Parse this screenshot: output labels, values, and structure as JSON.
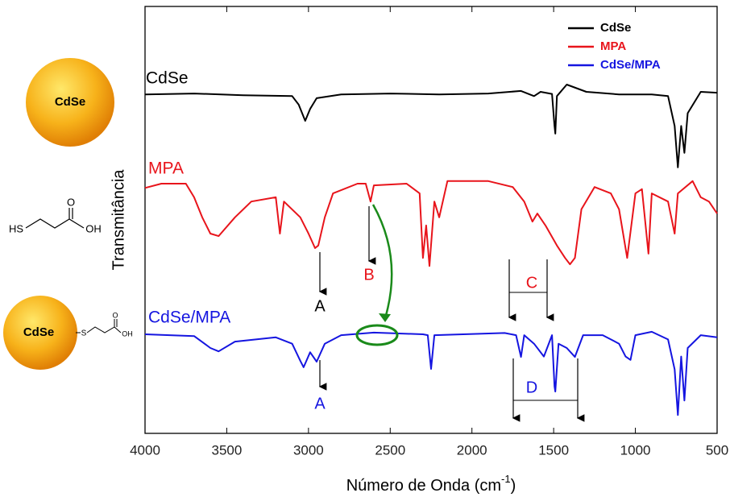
{
  "chart_data": {
    "type": "line",
    "xlabel": {
      "text": "Número de Onda (cm",
      "superscript": "-1",
      "suffix": ")"
    },
    "ylabel": "Transmitância",
    "xlim": [
      4000,
      500
    ],
    "xticks": [
      4000,
      3500,
      3000,
      2500,
      2000,
      1500,
      1000,
      500
    ],
    "ylim": [
      0,
      100
    ],
    "legend": "upper right",
    "series": [
      {
        "name": "CdSe",
        "color": "#000000",
        "x": [
          4000,
          3700,
          3400,
          3100,
          3060,
          3020,
          2990,
          2950,
          2800,
          2500,
          2200,
          1900,
          1700,
          1620,
          1580,
          1510,
          1495,
          1490,
          1480,
          1420,
          1300,
          1100,
          900,
          800,
          760,
          740,
          720,
          700,
          680,
          600,
          500
        ],
        "values": [
          79.4,
          79.6,
          79.2,
          79.0,
          77,
          73.2,
          76,
          78.5,
          79.4,
          79.6,
          79.4,
          79.6,
          80.2,
          79,
          80,
          79.5,
          72,
          70.2,
          79,
          81.7,
          80,
          79.4,
          79.4,
          79,
          72,
          62.3,
          72,
          65.7,
          75,
          80,
          79.8
        ]
      },
      {
        "name": "MPA",
        "color": "#e8141b",
        "x": [
          4000,
          3900,
          3750,
          3700,
          3650,
          3600,
          3550,
          3450,
          3350,
          3200,
          3175,
          3150,
          3050,
          3000,
          2960,
          2940,
          2900,
          2850,
          2700,
          2650,
          2620,
          2600,
          2400,
          2320,
          2300,
          2280,
          2260,
          2230,
          2200,
          2150,
          1900,
          1750,
          1680,
          1630,
          1600,
          1550,
          1480,
          1430,
          1400,
          1370,
          1330,
          1250,
          1150,
          1100,
          1050,
          1000,
          960,
          920,
          900,
          800,
          760,
          740,
          650,
          600,
          550,
          500
        ],
        "values": [
          57.5,
          58.5,
          58.5,
          55.3,
          50.6,
          46.8,
          46.2,
          50.6,
          54.3,
          55.3,
          46.8,
          54.3,
          50.6,
          46.8,
          43.4,
          44,
          50.6,
          56.2,
          58.5,
          58.5,
          54.3,
          58.1,
          58.5,
          56.2,
          41.1,
          48.7,
          39.2,
          54.3,
          50.6,
          59.1,
          59.1,
          57.7,
          54.3,
          49.6,
          51.5,
          48.7,
          44,
          41.1,
          39.6,
          41.1,
          52.5,
          57.7,
          56.2,
          52.5,
          41.1,
          56.2,
          57.2,
          42.1,
          56.2,
          54.3,
          46.8,
          56.2,
          59.1,
          55.3,
          54.3,
          51.5
        ]
      },
      {
        "name": "CdSe/MPA",
        "color": "#1515e0",
        "x": [
          4000,
          3700,
          3600,
          3550,
          3450,
          3200,
          3100,
          3050,
          3030,
          2990,
          2950,
          2900,
          2800,
          2600,
          2300,
          2270,
          2250,
          2230,
          1800,
          1730,
          1700,
          1680,
          1620,
          1560,
          1510,
          1495,
          1490,
          1470,
          1420,
          1370,
          1320,
          1200,
          1100,
          1060,
          1030,
          1000,
          900,
          800,
          760,
          740,
          720,
          700,
          680,
          600,
          500
        ],
        "values": [
          23.2,
          22.8,
          20,
          19.2,
          21.5,
          22.5,
          21,
          17,
          15.5,
          19,
          16.8,
          21,
          23,
          23.6,
          23.2,
          23,
          15.1,
          23,
          23.5,
          23,
          17.9,
          23,
          21,
          18,
          23,
          11,
          9.8,
          21,
          20,
          17.9,
          23,
          23,
          21,
          18,
          17.2,
          23,
          23.8,
          22,
          15,
          4.3,
          18,
          7.7,
          20,
          23,
          22.5
        ]
      }
    ],
    "curve_labels": [
      "CdSe",
      "MPA",
      "CdSe/MPA"
    ],
    "annotations": [
      "A",
      "B",
      "C",
      "A",
      "D"
    ]
  },
  "illustrations": {
    "particle_label": "CdSe",
    "mpa_atoms": [
      "HS",
      "O",
      "OH"
    ],
    "conjugate_label": "CdSe",
    "conjugate_atoms": [
      "S",
      "O",
      "OH"
    ]
  }
}
